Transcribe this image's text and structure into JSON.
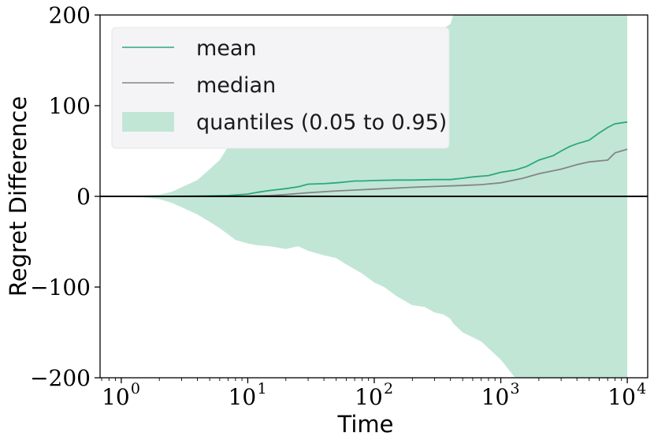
{
  "chart_data": {
    "type": "line",
    "xlabel": "Time",
    "ylabel": "Regret Difference",
    "xscale": "log",
    "xlim": [
      0.68,
      14500
    ],
    "ylim": [
      -200,
      200
    ],
    "x_ticks": [
      {
        "value": 1,
        "base": "10",
        "exp": "0"
      },
      {
        "value": 10,
        "base": "10",
        "exp": "1"
      },
      {
        "value": 100,
        "base": "10",
        "exp": "2"
      },
      {
        "value": 1000,
        "base": "10",
        "exp": "3"
      },
      {
        "value": 10000,
        "base": "10",
        "exp": "4"
      }
    ],
    "y_ticks": [
      {
        "value": 200,
        "label": "200"
      },
      {
        "value": 100,
        "label": "100"
      },
      {
        "value": 0,
        "label": "0"
      },
      {
        "value": -100,
        "label": "−100"
      },
      {
        "value": -200,
        "label": "−200"
      }
    ],
    "grid": false,
    "legend_position": "top-left",
    "reference_line": {
      "y": 0,
      "color": "#000000"
    },
    "series": [
      {
        "name": "mean",
        "color": "#2ca87a",
        "x": [
          0.68,
          1,
          2,
          3,
          5,
          7,
          10,
          12,
          15,
          20,
          25,
          30,
          40,
          50,
          60,
          70,
          80,
          100,
          150,
          200,
          300,
          400,
          500,
          600,
          800,
          1000,
          1300,
          1600,
          2000,
          2600,
          3000,
          3500,
          4000,
          5000,
          6000,
          7000,
          8000,
          10000
        ],
        "y": [
          0,
          0,
          0,
          0.2,
          0.5,
          1,
          2.5,
          4.5,
          6.5,
          8.5,
          10.5,
          13.5,
          14,
          15,
          16,
          17,
          17,
          17.5,
          18,
          18,
          18.5,
          18.5,
          20,
          21.5,
          23,
          26.5,
          29,
          33,
          40,
          45,
          50,
          55,
          58,
          62,
          70,
          76,
          80,
          82
        ]
      },
      {
        "name": "median",
        "color": "#858585",
        "x": [
          0.68,
          1,
          2,
          3,
          5,
          7,
          10,
          15,
          20,
          30,
          50,
          70,
          100,
          200,
          300,
          500,
          700,
          1000,
          1500,
          2000,
          3000,
          4000,
          5000,
          7000,
          8000,
          10000
        ],
        "y": [
          0,
          0,
          0,
          0,
          0,
          0,
          0.3,
          1,
          2,
          4,
          6,
          7,
          8,
          10,
          11,
          12,
          13,
          15,
          20,
          25,
          30,
          35,
          38,
          40,
          48,
          52
        ]
      }
    ],
    "band": {
      "name": "quantiles (0.05 to 0.95)",
      "color": "#c1e6d6",
      "x": [
        0.68,
        1,
        1.5,
        2,
        2.5,
        3,
        4,
        5,
        6,
        7,
        8,
        10,
        12,
        15,
        20,
        25,
        30,
        40,
        50,
        60,
        80,
        100,
        120,
        150,
        200,
        250,
        300,
        350,
        400,
        420,
        500,
        700,
        1000,
        1300,
        1500,
        2000,
        3000,
        5000,
        7000,
        10000
      ],
      "upper": [
        0,
        0.5,
        1,
        2,
        5,
        10,
        18,
        30,
        40,
        55,
        65,
        70,
        82,
        95,
        110,
        118,
        125,
        135,
        140,
        148,
        160,
        175,
        160,
        168,
        178,
        170,
        175,
        185,
        190,
        200,
        200,
        200,
        200,
        200,
        200,
        200,
        200,
        200,
        200,
        200
      ],
      "lower": [
        0,
        -0.5,
        -1,
        -3,
        -7,
        -12,
        -20,
        -28,
        -35,
        -42,
        -48,
        -52,
        -54,
        -55,
        -58,
        -55,
        -60,
        -65,
        -68,
        -75,
        -85,
        -95,
        -100,
        -110,
        -120,
        -122,
        -128,
        -130,
        -135,
        -140,
        -150,
        -160,
        -180,
        -200,
        -200,
        -200,
        -200,
        -200,
        -200,
        -200
      ]
    }
  }
}
